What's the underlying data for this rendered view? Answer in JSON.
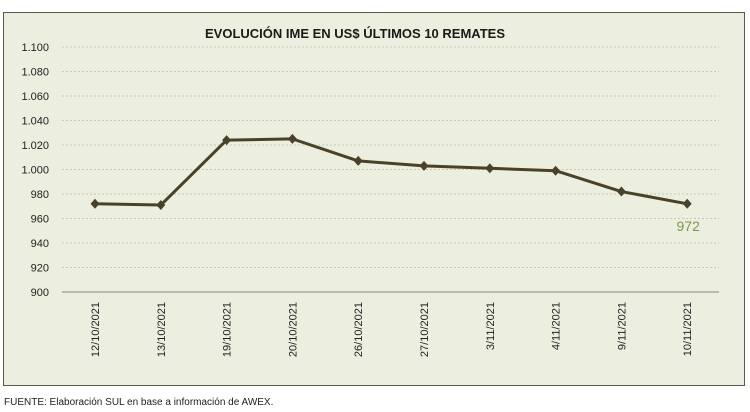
{
  "chart_data": {
    "type": "line",
    "title": "EVOLUCIÓN IME EN US$ ÚLTIMOS 10 REMATES",
    "categories": [
      "12/10/2021",
      "13/10/2021",
      "19/10/2021",
      "20/10/2021",
      "26/10/2021",
      "27/10/2021",
      "3/11/2021",
      "4/11/2021",
      "9/11/2021",
      "10/11/2021"
    ],
    "series": [
      {
        "values": [
          972,
          971,
          1024,
          1025,
          1007,
          1003,
          1001,
          999,
          982,
          972
        ]
      }
    ],
    "ylim": [
      900,
      1100
    ],
    "yticks": [
      900,
      920,
      940,
      960,
      980,
      1000,
      1020,
      1040,
      1060,
      1080,
      1100
    ],
    "ytick_labels": [
      "900",
      "920",
      "940",
      "960",
      "980",
      "1.000",
      "1.020",
      "1.040",
      "1.060",
      "1.080",
      "1.100"
    ],
    "data_label": {
      "index": 9,
      "text": "972"
    },
    "grid": true,
    "grid_style": "dotted horizontal",
    "legend": "none",
    "colors": {
      "line": "#4a4228",
      "data_label": "#7a9a4a",
      "background": "#eceedf",
      "grid": "#c8c8b0"
    }
  },
  "footer": "FUENTE: Elaboración SUL en base a información de AWEX."
}
